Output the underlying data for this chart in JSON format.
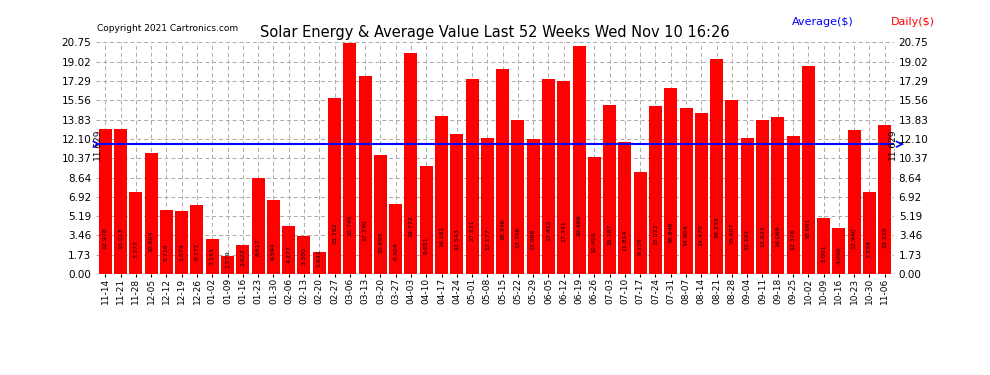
{
  "title": "Solar Energy & Average Value Last 52 Weeks Wed Nov 10 16:26",
  "copyright": "Copyright 2021 Cartronics.com",
  "average_label": "Average($)",
  "daily_label": "Daily($)",
  "average_value": 11.629,
  "bar_color": "#ff0000",
  "average_line_color": "#0000ff",
  "avg_label_color": "#0000ff",
  "daily_label_color": "#ff0000",
  "background_color": "#ffffff",
  "grid_color": "#aaaaaa",
  "yticks": [
    0.0,
    1.73,
    3.46,
    5.19,
    6.92,
    8.64,
    10.37,
    12.1,
    13.83,
    15.56,
    17.29,
    19.02,
    20.75
  ],
  "categories": [
    "11-14",
    "11-21",
    "11-28",
    "12-05",
    "12-12",
    "12-19",
    "12-26",
    "01-02",
    "01-09",
    "01-16",
    "01-23",
    "01-30",
    "02-06",
    "02-13",
    "02-20",
    "02-27",
    "03-06",
    "03-13",
    "03-20",
    "03-27",
    "04-03",
    "04-10",
    "04-17",
    "04-24",
    "05-01",
    "05-08",
    "05-15",
    "05-22",
    "05-29",
    "06-05",
    "06-12",
    "06-19",
    "06-26",
    "07-03",
    "07-10",
    "07-17",
    "07-24",
    "07-31",
    "08-07",
    "08-14",
    "08-21",
    "08-28",
    "09-04",
    "09-11",
    "09-18",
    "09-25",
    "10-02",
    "10-09",
    "10-16",
    "10-23",
    "10-30",
    "11-06"
  ],
  "values": [
    12.978,
    13.013,
    7.377,
    10.804,
    5.716,
    5.674,
    6.171,
    3.143,
    1.579,
    2.622,
    8.617,
    6.594,
    4.277,
    3.38,
    1.921,
    15.792,
    20.745,
    17.74,
    10.695,
    6.304,
    19.772,
    9.651,
    14.181,
    12.543,
    17.521,
    12.177,
    18.346,
    13.766,
    12.088,
    17.452,
    17.341,
    20.468,
    10.459,
    15.187,
    11.814,
    9.159,
    15.022,
    16.646,
    14.904,
    14.47,
    19.235,
    15.607,
    12.191,
    13.823,
    14.069,
    12.376,
    18.601,
    5.001,
    4.096,
    12.94,
    7.334,
    13.325
  ]
}
